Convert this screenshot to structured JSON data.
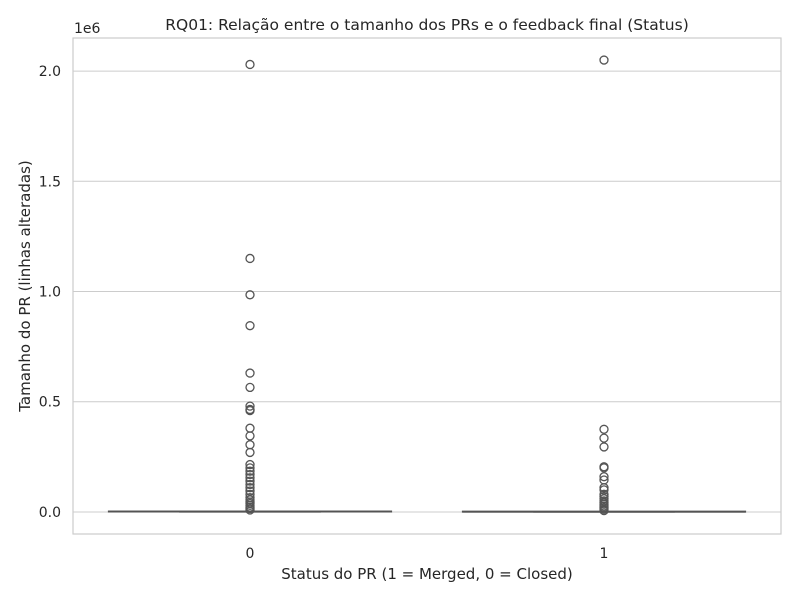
{
  "chart_data": {
    "type": "box",
    "title": "RQ01: Relação entre o tamanho dos PRs e o feedback final (Status)",
    "xlabel": "Status do PR (1 = Merged, 0 = Closed)",
    "ylabel": "Tamanho do PR (linhas alteradas)",
    "offset_text": "1e6",
    "categories": [
      "0",
      "1"
    ],
    "ylim": [
      -100000,
      2150000
    ],
    "yticks": [
      0,
      500000,
      1000000,
      1500000,
      2000000
    ],
    "ytick_labels": [
      "0.0",
      "0.5",
      "1.0",
      "1.5",
      "2.0"
    ],
    "grid": true,
    "colors": {
      "box": "#555555",
      "grid": "#cccccc"
    },
    "series": [
      {
        "category": "0",
        "box": {
          "min": 0,
          "q1": 200,
          "median": 600,
          "q3": 2000,
          "max": 5000
        },
        "outliers": [
          2030000,
          1150000,
          985000,
          845000,
          630000,
          565000,
          480000,
          465000,
          460000,
          380000,
          345000,
          305000,
          270000,
          215000,
          200000,
          185000,
          170000,
          155000,
          140000,
          125000,
          110000,
          95000,
          80000,
          65000,
          55000,
          45000,
          38000,
          30000,
          22000,
          15000,
          9000
        ]
      },
      {
        "category": "1",
        "box": {
          "min": 0,
          "q1": 150,
          "median": 400,
          "q3": 1500,
          "max": 3500
        },
        "outliers": [
          2050000,
          375000,
          335000,
          295000,
          205000,
          200000,
          160000,
          145000,
          110000,
          100000,
          80000,
          70000,
          60000,
          50000,
          42000,
          35000,
          27000,
          20000,
          12000,
          6000
        ]
      }
    ]
  }
}
